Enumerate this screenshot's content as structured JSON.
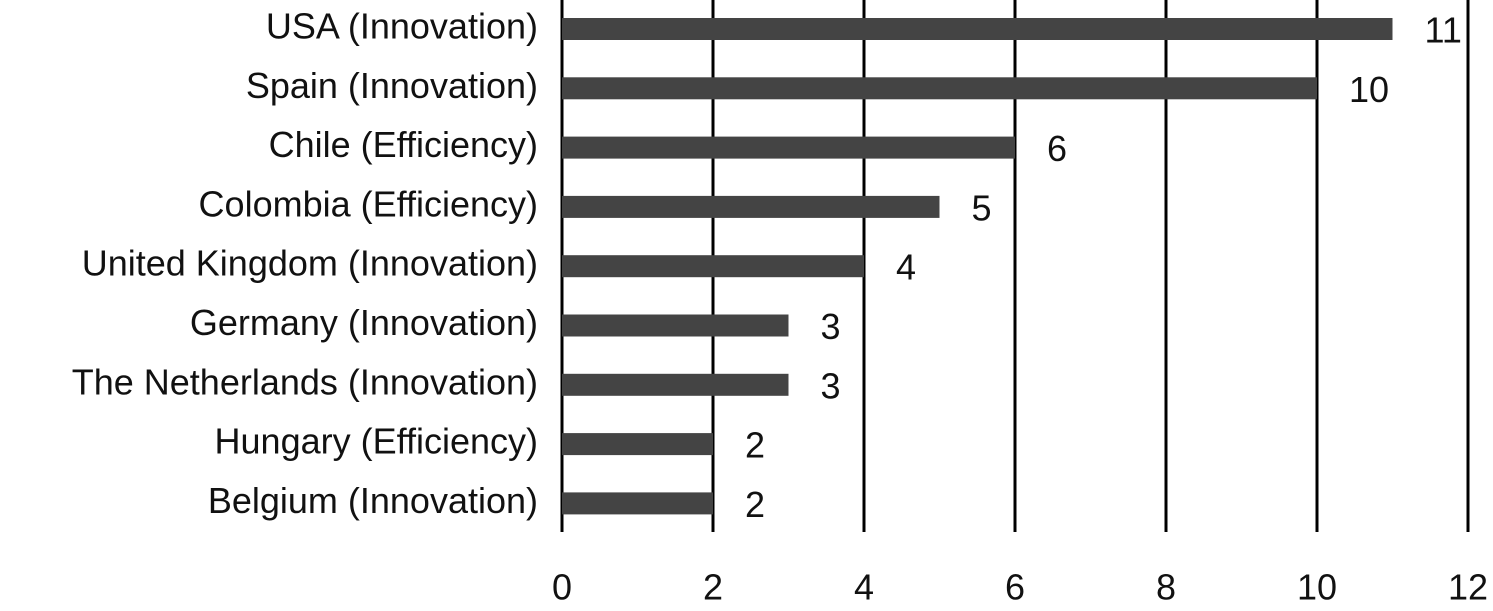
{
  "chart_data": {
    "type": "barh",
    "categories": [
      "USA (Innovation)",
      "Spain (Innovation)",
      "Chile (Efficiency)",
      "Colombia (Efficiency)",
      "United Kingdom (Innovation)",
      "Germany (Innovation)",
      "The Netherlands (Innovation)",
      "Hungary (Efficiency)",
      "Belgium (Innovation)"
    ],
    "values": [
      11,
      10,
      6,
      5,
      4,
      3,
      3,
      2,
      2
    ],
    "color": "#444444",
    "xlim": [
      0,
      12
    ],
    "xticks": [
      0,
      2,
      4,
      6,
      8,
      10,
      12
    ],
    "grid": true
  }
}
